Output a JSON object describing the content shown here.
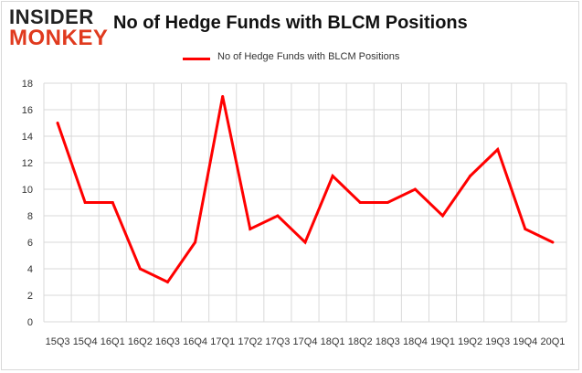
{
  "page": {
    "logo_line1": "INSIDER",
    "logo_line2": "MONKEY",
    "title": "No of Hedge Funds with BLCM Positions"
  },
  "chart_data": {
    "type": "line",
    "title": "No of Hedge Funds with BLCM Positions",
    "xlabel": "",
    "ylabel": "",
    "categories": [
      "15Q3",
      "15Q4",
      "16Q1",
      "16Q2",
      "16Q3",
      "16Q4",
      "17Q1",
      "17Q2",
      "17Q3",
      "17Q4",
      "18Q1",
      "18Q2",
      "18Q3",
      "18Q4",
      "19Q1",
      "19Q2",
      "19Q3",
      "19Q4",
      "20Q1"
    ],
    "series": [
      {
        "name": "No of Hedge Funds with BLCM Positions",
        "values": [
          15,
          9,
          9,
          4,
          3,
          6,
          17,
          7,
          8,
          6,
          11,
          9,
          9,
          10,
          8,
          11,
          13,
          7,
          6
        ],
        "color": "#ff0000"
      }
    ],
    "ylim": [
      0,
      18
    ],
    "yticks": [
      0,
      2,
      4,
      6,
      8,
      10,
      12,
      14,
      16,
      18
    ],
    "grid": true,
    "legend": "top-center",
    "colors": {
      "line": "#ff0000",
      "grid": "#d9d9d9",
      "logo_accent": "#e03a1e"
    }
  }
}
